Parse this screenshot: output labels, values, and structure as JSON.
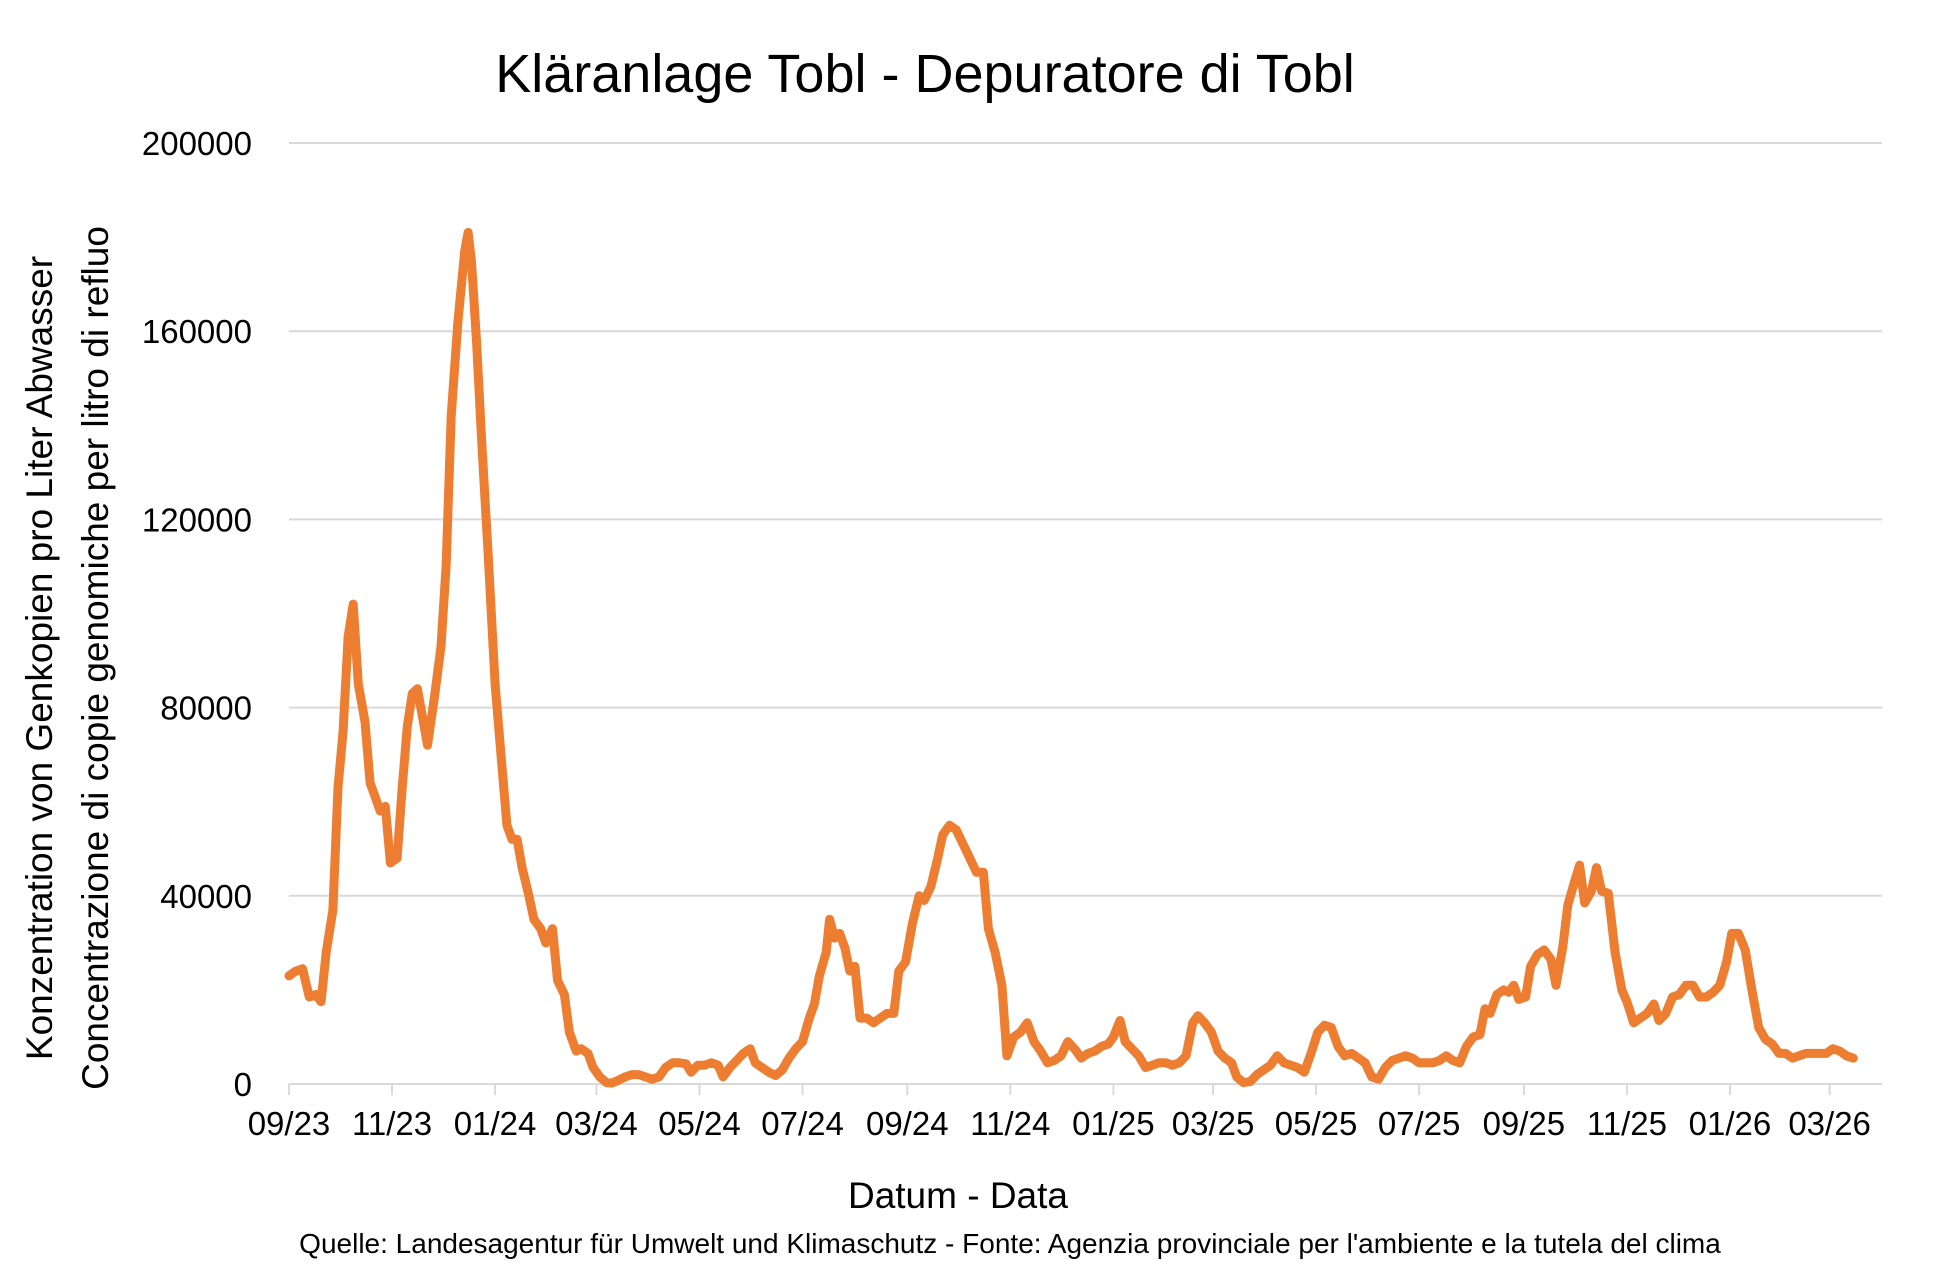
{
  "chart_data": {
    "type": "line",
    "title": "Kläranlage Tobl - Depuratore di Tobl",
    "xlabel": "Datum - Data",
    "ylabel": [
      "Konzentration von Genkopien pro Liter Abwasser",
      "Concentrazione di copie genomiche per litro di refluo"
    ],
    "source": "Quelle: Landesagentur für Umwelt und Klimaschutz - Fonte: Agenzia provinciale per l'ambiente e la tutela del clima",
    "ylim": [
      0,
      200000
    ],
    "yticks": [
      "0",
      "40000",
      "80000",
      "120000",
      "160000",
      "200000"
    ],
    "xlim": [
      "2023-09-01",
      "2026-04-01"
    ],
    "xticks": [
      {
        "date": "2023-09-01",
        "label": "09/23"
      },
      {
        "date": "2023-11-01",
        "label": "11/23"
      },
      {
        "date": "2024-01-01",
        "label": "01/24"
      },
      {
        "date": "2024-03-01",
        "label": "03/24"
      },
      {
        "date": "2024-05-01",
        "label": "05/24"
      },
      {
        "date": "2024-07-01",
        "label": "07/24"
      },
      {
        "date": "2024-09-01",
        "label": "09/24"
      },
      {
        "date": "2024-11-01",
        "label": "11/24"
      },
      {
        "date": "2025-01-01",
        "label": "01/25"
      },
      {
        "date": "2025-03-01",
        "label": "03/25"
      },
      {
        "date": "2025-05-01",
        "label": "05/25"
      },
      {
        "date": "2025-07-01",
        "label": "07/25"
      },
      {
        "date": "2025-09-01",
        "label": "09/25"
      },
      {
        "date": "2025-11-01",
        "label": "11/25"
      },
      {
        "date": "2026-01-01",
        "label": "01/26"
      },
      {
        "date": "2026-03-01",
        "label": "03/26"
      }
    ],
    "grid": true,
    "colors": {
      "series": "#ed7d31",
      "grid": "#d9d9d9"
    },
    "series": [
      {
        "points": [
          [
            "2023-09-01",
            23000
          ],
          [
            "2023-09-05",
            24000
          ],
          [
            "2023-09-09",
            24500
          ],
          [
            "2023-09-13",
            18500
          ],
          [
            "2023-09-17",
            19000
          ],
          [
            "2023-09-20",
            17500
          ],
          [
            "2023-09-23",
            28000
          ],
          [
            "2023-09-27",
            37000
          ],
          [
            "2023-09-30",
            63000
          ],
          [
            "2023-10-03",
            75000
          ],
          [
            "2023-10-06",
            95000
          ],
          [
            "2023-10-09",
            102000
          ],
          [
            "2023-10-12",
            85000
          ],
          [
            "2023-10-16",
            77000
          ],
          [
            "2023-10-19",
            64000
          ],
          [
            "2023-10-22",
            61000
          ],
          [
            "2023-10-25",
            58000
          ],
          [
            "2023-10-28",
            59000
          ],
          [
            "2023-10-31",
            47000
          ],
          [
            "2023-11-04",
            48000
          ],
          [
            "2023-11-07",
            63000
          ],
          [
            "2023-11-10",
            76000
          ],
          [
            "2023-11-13",
            83000
          ],
          [
            "2023-11-16",
            84000
          ],
          [
            "2023-11-19",
            78000
          ],
          [
            "2023-11-22",
            72000
          ],
          [
            "2023-11-26",
            82000
          ],
          [
            "2023-11-30",
            93000
          ],
          [
            "2023-12-03",
            110000
          ],
          [
            "2023-12-06",
            142000
          ],
          [
            "2023-12-10",
            162000
          ],
          [
            "2023-12-14",
            177000
          ],
          [
            "2023-12-16",
            181000
          ],
          [
            "2023-12-18",
            175000
          ],
          [
            "2023-12-21",
            158000
          ],
          [
            "2023-12-24",
            137000
          ],
          [
            "2023-12-28",
            112000
          ],
          [
            "2024-01-01",
            85000
          ],
          [
            "2024-01-04",
            72000
          ],
          [
            "2024-01-08",
            55000
          ],
          [
            "2024-01-11",
            52000
          ],
          [
            "2024-01-14",
            52000
          ],
          [
            "2024-01-17",
            46000
          ],
          [
            "2024-01-21",
            40000
          ],
          [
            "2024-01-24",
            35000
          ],
          [
            "2024-01-28",
            33000
          ],
          [
            "2024-01-31",
            30000
          ],
          [
            "2024-02-04",
            33000
          ],
          [
            "2024-02-07",
            22000
          ],
          [
            "2024-02-11",
            19000
          ],
          [
            "2024-02-14",
            11000
          ],
          [
            "2024-02-18",
            7000
          ],
          [
            "2024-02-21",
            7500
          ],
          [
            "2024-02-25",
            6500
          ],
          [
            "2024-02-28",
            3500
          ],
          [
            "2024-03-03",
            1500
          ],
          [
            "2024-03-07",
            300
          ],
          [
            "2024-03-10",
            200
          ],
          [
            "2024-03-14",
            800
          ],
          [
            "2024-03-18",
            1500
          ],
          [
            "2024-03-22",
            2000
          ],
          [
            "2024-03-26",
            2000
          ],
          [
            "2024-03-30",
            1500
          ],
          [
            "2024-04-03",
            1000
          ],
          [
            "2024-04-07",
            1500
          ],
          [
            "2024-04-11",
            3500
          ],
          [
            "2024-04-15",
            4500
          ],
          [
            "2024-04-19",
            4500
          ],
          [
            "2024-04-23",
            4300
          ],
          [
            "2024-04-26",
            2500
          ],
          [
            "2024-04-30",
            4000
          ],
          [
            "2024-05-04",
            4000
          ],
          [
            "2024-05-08",
            4500
          ],
          [
            "2024-05-12",
            4000
          ],
          [
            "2024-05-15",
            1500
          ],
          [
            "2024-05-19",
            3500
          ],
          [
            "2024-05-23",
            5000
          ],
          [
            "2024-05-27",
            6500
          ],
          [
            "2024-05-31",
            7500
          ],
          [
            "2024-06-03",
            4500
          ],
          [
            "2024-06-07",
            3500
          ],
          [
            "2024-06-11",
            2500
          ],
          [
            "2024-06-15",
            1800
          ],
          [
            "2024-06-19",
            3000
          ],
          [
            "2024-06-23",
            5500
          ],
          [
            "2024-06-27",
            7500
          ],
          [
            "2024-07-01",
            9000
          ],
          [
            "2024-07-05",
            14000
          ],
          [
            "2024-07-08",
            17000
          ],
          [
            "2024-07-11",
            23000
          ],
          [
            "2024-07-15",
            28000
          ],
          [
            "2024-07-17",
            35000
          ],
          [
            "2024-07-20",
            31000
          ],
          [
            "2024-07-23",
            32000
          ],
          [
            "2024-07-26",
            29000
          ],
          [
            "2024-07-29",
            24000
          ],
          [
            "2024-08-01",
            25000
          ],
          [
            "2024-08-04",
            14000
          ],
          [
            "2024-08-08",
            14000
          ],
          [
            "2024-08-12",
            13000
          ],
          [
            "2024-08-16",
            14000
          ],
          [
            "2024-08-20",
            15000
          ],
          [
            "2024-08-24",
            15000
          ],
          [
            "2024-08-27",
            24000
          ],
          [
            "2024-08-31",
            26000
          ],
          [
            "2024-09-04",
            34000
          ],
          [
            "2024-09-08",
            40000
          ],
          [
            "2024-09-11",
            39000
          ],
          [
            "2024-09-15",
            42000
          ],
          [
            "2024-09-19",
            48000
          ],
          [
            "2024-09-22",
            53000
          ],
          [
            "2024-09-26",
            55000
          ],
          [
            "2024-09-30",
            54000
          ],
          [
            "2024-10-04",
            51000
          ],
          [
            "2024-10-08",
            48000
          ],
          [
            "2024-10-12",
            45000
          ],
          [
            "2024-10-16",
            45000
          ],
          [
            "2024-10-19",
            33000
          ],
          [
            "2024-10-23",
            28000
          ],
          [
            "2024-10-27",
            21000
          ],
          [
            "2024-10-30",
            6000
          ],
          [
            "2024-11-03",
            10000
          ],
          [
            "2024-11-07",
            11000
          ],
          [
            "2024-11-11",
            13000
          ],
          [
            "2024-11-15",
            9000
          ],
          [
            "2024-11-19",
            7000
          ],
          [
            "2024-11-23",
            4500
          ],
          [
            "2024-11-27",
            5000
          ],
          [
            "2024-12-01",
            6000
          ],
          [
            "2024-12-05",
            9000
          ],
          [
            "2024-12-09",
            7500
          ],
          [
            "2024-12-13",
            5500
          ],
          [
            "2024-12-17",
            6500
          ],
          [
            "2024-12-21",
            7000
          ],
          [
            "2024-12-25",
            8000
          ],
          [
            "2024-12-29",
            8500
          ],
          [
            "2025-01-01",
            10000
          ],
          [
            "2025-01-05",
            13500
          ],
          [
            "2025-01-08",
            9000
          ],
          [
            "2025-01-12",
            7500
          ],
          [
            "2025-01-16",
            6000
          ],
          [
            "2025-01-20",
            3500
          ],
          [
            "2025-01-24",
            4000
          ],
          [
            "2025-01-28",
            4500
          ],
          [
            "2025-02-01",
            4500
          ],
          [
            "2025-02-05",
            4000
          ],
          [
            "2025-02-09",
            4500
          ],
          [
            "2025-02-13",
            6000
          ],
          [
            "2025-02-17",
            13000
          ],
          [
            "2025-02-20",
            14500
          ],
          [
            "2025-02-24",
            13000
          ],
          [
            "2025-02-28",
            11000
          ],
          [
            "2025-03-04",
            7000
          ],
          [
            "2025-03-08",
            5500
          ],
          [
            "2025-03-12",
            4500
          ],
          [
            "2025-03-15",
            1500
          ],
          [
            "2025-03-19",
            300
          ],
          [
            "2025-03-23",
            500
          ],
          [
            "2025-03-27",
            2000
          ],
          [
            "2025-03-31",
            3000
          ],
          [
            "2025-04-04",
            4000
          ],
          [
            "2025-04-08",
            6000
          ],
          [
            "2025-04-12",
            4500
          ],
          [
            "2025-04-16",
            4000
          ],
          [
            "2025-04-20",
            3500
          ],
          [
            "2025-04-24",
            2500
          ],
          [
            "2025-04-28",
            6500
          ],
          [
            "2025-05-02",
            11000
          ],
          [
            "2025-05-06",
            12500
          ],
          [
            "2025-05-10",
            12000
          ],
          [
            "2025-05-14",
            8000
          ],
          [
            "2025-05-18",
            6000
          ],
          [
            "2025-05-22",
            6500
          ],
          [
            "2025-05-26",
            5500
          ],
          [
            "2025-05-30",
            4500
          ],
          [
            "2025-06-03",
            1500
          ],
          [
            "2025-06-07",
            1000
          ],
          [
            "2025-06-11",
            3500
          ],
          [
            "2025-06-15",
            5000
          ],
          [
            "2025-06-19",
            5500
          ],
          [
            "2025-06-23",
            6000
          ],
          [
            "2025-06-27",
            5500
          ],
          [
            "2025-07-01",
            4500
          ],
          [
            "2025-07-05",
            4500
          ],
          [
            "2025-07-09",
            4500
          ],
          [
            "2025-07-13",
            5000
          ],
          [
            "2025-07-17",
            6000
          ],
          [
            "2025-07-21",
            5000
          ],
          [
            "2025-07-25",
            4500
          ],
          [
            "2025-07-29",
            8000
          ],
          [
            "2025-08-02",
            10000
          ],
          [
            "2025-08-06",
            10500
          ],
          [
            "2025-08-09",
            16000
          ],
          [
            "2025-08-12",
            15000
          ],
          [
            "2025-08-16",
            19000
          ],
          [
            "2025-08-20",
            20000
          ],
          [
            "2025-08-23",
            19500
          ],
          [
            "2025-08-26",
            21000
          ],
          [
            "2025-08-29",
            18000
          ],
          [
            "2025-09-02",
            18500
          ],
          [
            "2025-09-05",
            25000
          ],
          [
            "2025-09-09",
            27500
          ],
          [
            "2025-09-13",
            28500
          ],
          [
            "2025-09-17",
            26500
          ],
          [
            "2025-09-20",
            21000
          ],
          [
            "2025-09-24",
            29000
          ],
          [
            "2025-09-27",
            38000
          ],
          [
            "2025-10-01",
            43000
          ],
          [
            "2025-10-04",
            46500
          ],
          [
            "2025-10-07",
            38500
          ],
          [
            "2025-10-11",
            41000
          ],
          [
            "2025-10-14",
            46000
          ],
          [
            "2025-10-17",
            41000
          ],
          [
            "2025-10-21",
            40500
          ],
          [
            "2025-10-25",
            28000
          ],
          [
            "2025-10-29",
            20000
          ],
          [
            "2025-11-01",
            17500
          ],
          [
            "2025-11-05",
            13000
          ],
          [
            "2025-11-09",
            14000
          ],
          [
            "2025-11-13",
            15000
          ],
          [
            "2025-11-17",
            17000
          ],
          [
            "2025-11-20",
            13500
          ],
          [
            "2025-11-24",
            15000
          ],
          [
            "2025-11-28",
            18500
          ],
          [
            "2025-12-02",
            19000
          ],
          [
            "2025-12-06",
            21000
          ],
          [
            "2025-12-10",
            21000
          ],
          [
            "2025-12-14",
            18500
          ],
          [
            "2025-12-18",
            18500
          ],
          [
            "2025-12-22",
            19500
          ],
          [
            "2025-12-26",
            21000
          ],
          [
            "2025-12-30",
            26000
          ],
          [
            "2026-01-02",
            32000
          ],
          [
            "2026-01-06",
            32000
          ],
          [
            "2026-01-10",
            28500
          ],
          [
            "2026-01-14",
            20000
          ],
          [
            "2026-01-18",
            12000
          ],
          [
            "2026-01-22",
            9500
          ],
          [
            "2026-01-26",
            8500
          ],
          [
            "2026-01-30",
            6500
          ],
          [
            "2026-02-03",
            6500
          ],
          [
            "2026-02-07",
            5500
          ],
          [
            "2026-02-11",
            6000
          ],
          [
            "2026-02-15",
            6500
          ],
          [
            "2026-02-19",
            6500
          ],
          [
            "2026-02-23",
            6500
          ],
          [
            "2026-02-27",
            6500
          ],
          [
            "2026-03-03",
            7500
          ],
          [
            "2026-03-07",
            7000
          ],
          [
            "2026-03-11",
            6000
          ],
          [
            "2026-03-15",
            5500
          ]
        ]
      }
    ]
  }
}
